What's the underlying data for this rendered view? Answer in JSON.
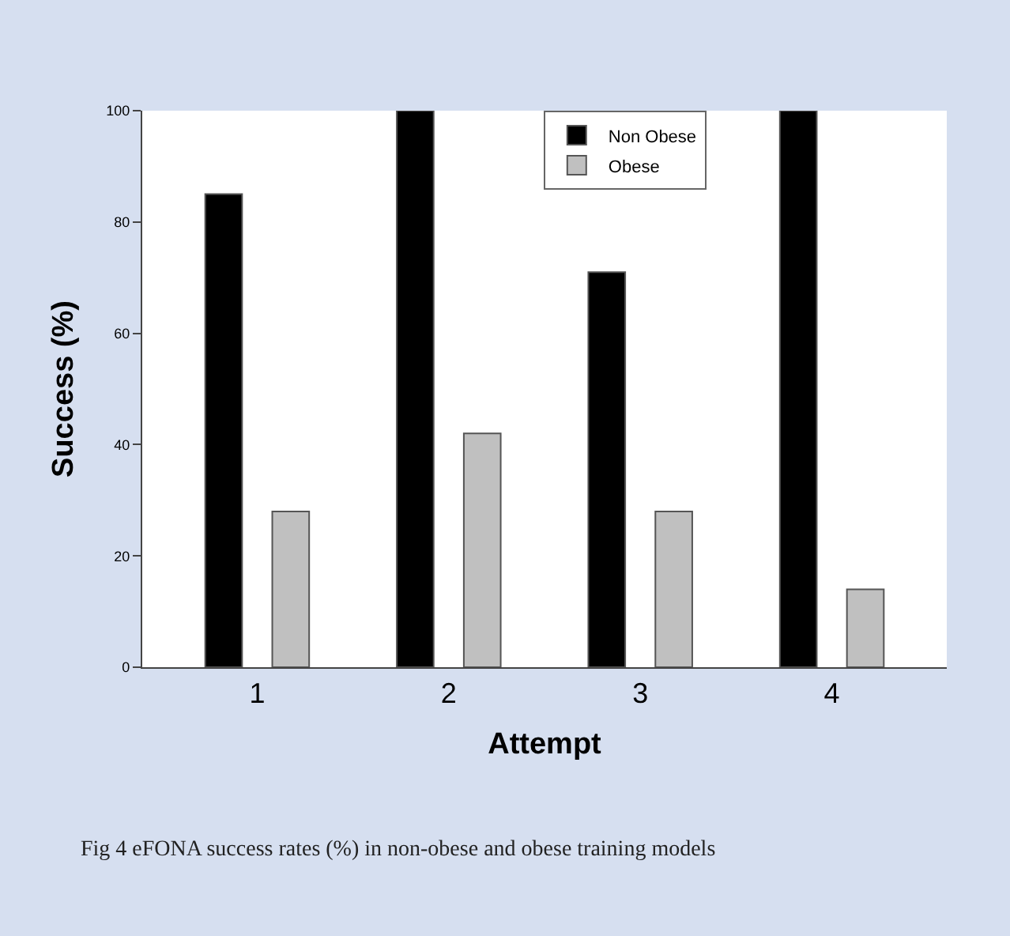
{
  "chart_data": {
    "type": "bar",
    "xlabel": "Attempt",
    "ylabel": "Success (%)",
    "categories": [
      "1",
      "2",
      "3",
      "4"
    ],
    "series": [
      {
        "name": "Non Obese",
        "color": "#000000",
        "values": [
          85,
          100,
          71,
          100
        ]
      },
      {
        "name": "Obese",
        "color": "#c0c0c0",
        "values": [
          28,
          42,
          28,
          14
        ]
      }
    ],
    "ylim": [
      0,
      100
    ],
    "yticks": [
      0,
      20,
      40,
      60,
      80,
      100
    ],
    "legend": "top",
    "annotations": [
      "Fig 4 eFONA success rates (%) in non-obese and obese training models"
    ]
  }
}
